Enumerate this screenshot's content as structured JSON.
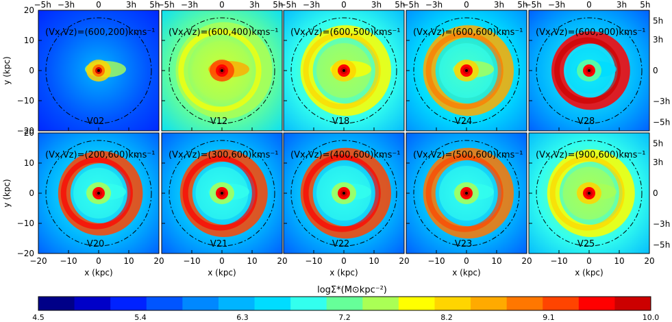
{
  "chart_data": {
    "type": "heatmap",
    "layout": {
      "rows": 2,
      "cols": 5
    },
    "xlabel": "x (kpc)",
    "ylabel": "y (kpc)",
    "xlim": [
      -20,
      20
    ],
    "ylim": [
      -20,
      20
    ],
    "xticks": [
      -20,
      -10,
      0,
      10,
      20
    ],
    "yticks": [
      -20,
      -10,
      0,
      10,
      20
    ],
    "top_axis_ticks": [
      {
        "label": "−5h",
        "x": -18.6
      },
      {
        "label": "−3h",
        "x": -10.8
      },
      {
        "label": "0",
        "x": 0
      },
      {
        "label": "3h",
        "x": 10.8
      },
      {
        "label": "5h",
        "x": 18.6
      }
    ],
    "right_axis_ticks": [
      {
        "label": "5h",
        "y": 16.5
      },
      {
        "label": "3h",
        "y": 10.2
      },
      {
        "label": "0",
        "y": 0
      },
      {
        "label": "−3h",
        "y": -10.2
      },
      {
        "label": "−5h",
        "y": -17.2
      }
    ],
    "circle_radius_kpc": 17.5,
    "panels": [
      {
        "velocity": "(Vx,Vz)=(600,200)kms⁻¹",
        "name": "V02",
        "ring": 0.0,
        "ring_r": 13,
        "bg": 0.22,
        "arm": 0.55,
        "nucleus": 0.7
      },
      {
        "velocity": "(Vx,Vz)=(600,400)kms⁻¹",
        "name": "V12",
        "ring": 0.55,
        "ring_r": 14,
        "bg": 0.5,
        "arm": 0.75,
        "nucleus": 0.8
      },
      {
        "velocity": "(Vx,Vz)=(600,500)kms⁻¹",
        "name": "V18",
        "ring": 0.6,
        "ring_r": 13,
        "bg": 0.45,
        "arm": 0.6,
        "nucleus": 0.8
      },
      {
        "velocity": "(Vx,Vz)=(600,600)kms⁻¹",
        "name": "V24",
        "ring": 0.75,
        "ring_r": 13,
        "bg": 0.38,
        "arm": 0.55,
        "nucleus": 0.8
      },
      {
        "velocity": "(Vx,Vz)=(600,900)kms⁻¹",
        "name": "V28",
        "ring": 0.9,
        "ring_r": 11,
        "bg": 0.32,
        "arm": 0.4,
        "nucleus": 0.8
      },
      {
        "velocity": "(Vx,Vz)=(200,600)kms⁻¹",
        "name": "V20",
        "ring": 0.85,
        "ring_r": 12,
        "bg": 0.34,
        "arm": 0.45,
        "nucleus": 0.8
      },
      {
        "velocity": "(Vx,Vz)=(300,600)kms⁻¹",
        "name": "V21",
        "ring": 0.85,
        "ring_r": 12.5,
        "bg": 0.34,
        "arm": 0.45,
        "nucleus": 0.8
      },
      {
        "velocity": "(Vx,Vz)=(400,600)kms⁻¹",
        "name": "V22",
        "ring": 0.85,
        "ring_r": 13,
        "bg": 0.34,
        "arm": 0.45,
        "nucleus": 0.8
      },
      {
        "velocity": "(Vx,Vz)=(500,600)kms⁻¹",
        "name": "V23",
        "ring": 0.82,
        "ring_r": 13,
        "bg": 0.34,
        "arm": 0.45,
        "nucleus": 0.8
      },
      {
        "velocity": "(Vx,Vz)=(900,600)kms⁻¹",
        "name": "V25",
        "ring": 0.6,
        "ring_r": 12.5,
        "bg": 0.45,
        "arm": 0.55,
        "nucleus": 0.8
      }
    ],
    "colorbar": {
      "label": "logΣ*(M⊙kpc⁻²)",
      "range": [
        4.5,
        10.0
      ],
      "ticks": [
        "4.5",
        "5.4",
        "6.3",
        "7.2",
        "8.2",
        "9.1",
        "10.0"
      ],
      "colors": [
        "#000088",
        "#0000c8",
        "#0022ff",
        "#0055ff",
        "#0088ff",
        "#00b4ff",
        "#00dcff",
        "#33ffee",
        "#66ff99",
        "#aaff55",
        "#ffff00",
        "#ffd500",
        "#ffaa00",
        "#ff7700",
        "#ff4400",
        "#ff0000",
        "#cc0000"
      ]
    }
  }
}
